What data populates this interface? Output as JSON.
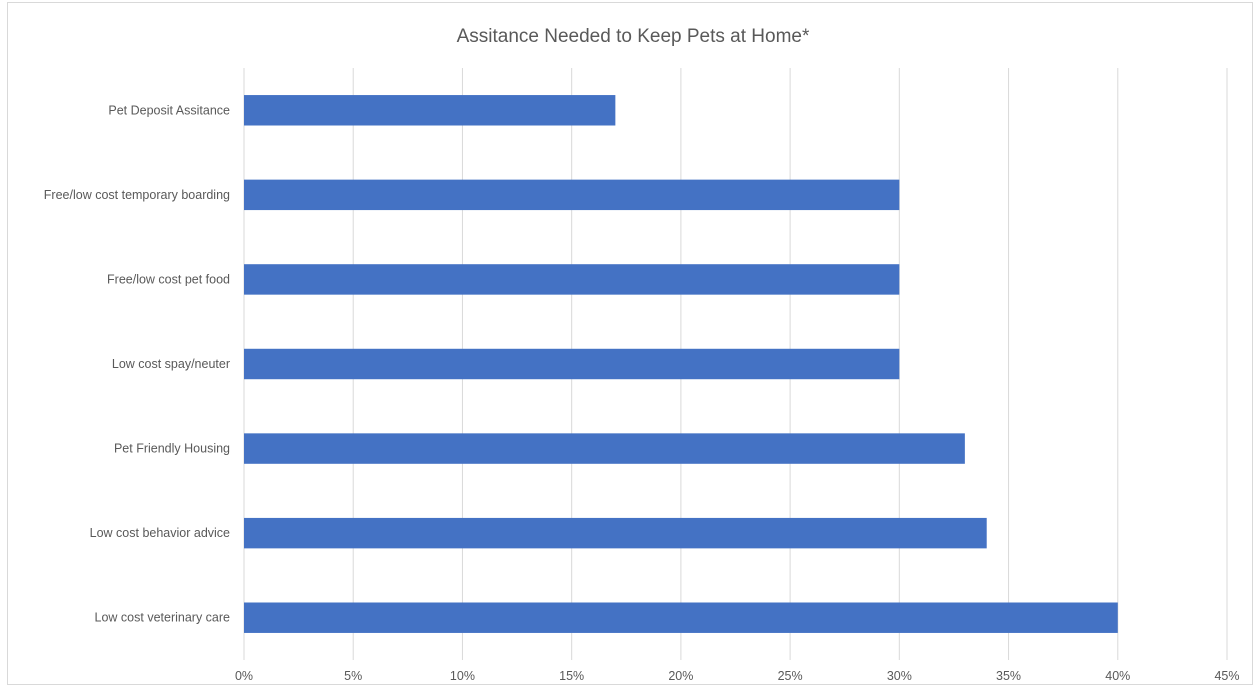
{
  "chart_data": {
    "type": "bar",
    "orientation": "horizontal",
    "title": "Assitance Needed to Keep Pets at Home*",
    "xlabel": "",
    "ylabel": "",
    "categories": [
      "Pet Deposit Assitance",
      "Free/low cost temporary boarding",
      "Free/low cost pet food",
      "Low cost spay/neuter",
      "Pet Friendly Housing",
      "Low cost behavior advice",
      "Low cost veterinary care"
    ],
    "values": [
      17,
      30,
      30,
      30,
      33,
      34,
      40
    ],
    "value_unit": "percent",
    "xlim": [
      0,
      45
    ],
    "x_ticks": [
      0,
      5,
      10,
      15,
      20,
      25,
      30,
      35,
      40,
      45
    ],
    "x_tick_labels": [
      "0%",
      "5%",
      "10%",
      "15%",
      "20%",
      "25%",
      "30%",
      "35%",
      "40%",
      "45%"
    ],
    "grid": "vertical",
    "legend": "none",
    "colors": {
      "bar": "#4472c4",
      "grid": "#d9d9d9",
      "text": "#595959"
    }
  }
}
